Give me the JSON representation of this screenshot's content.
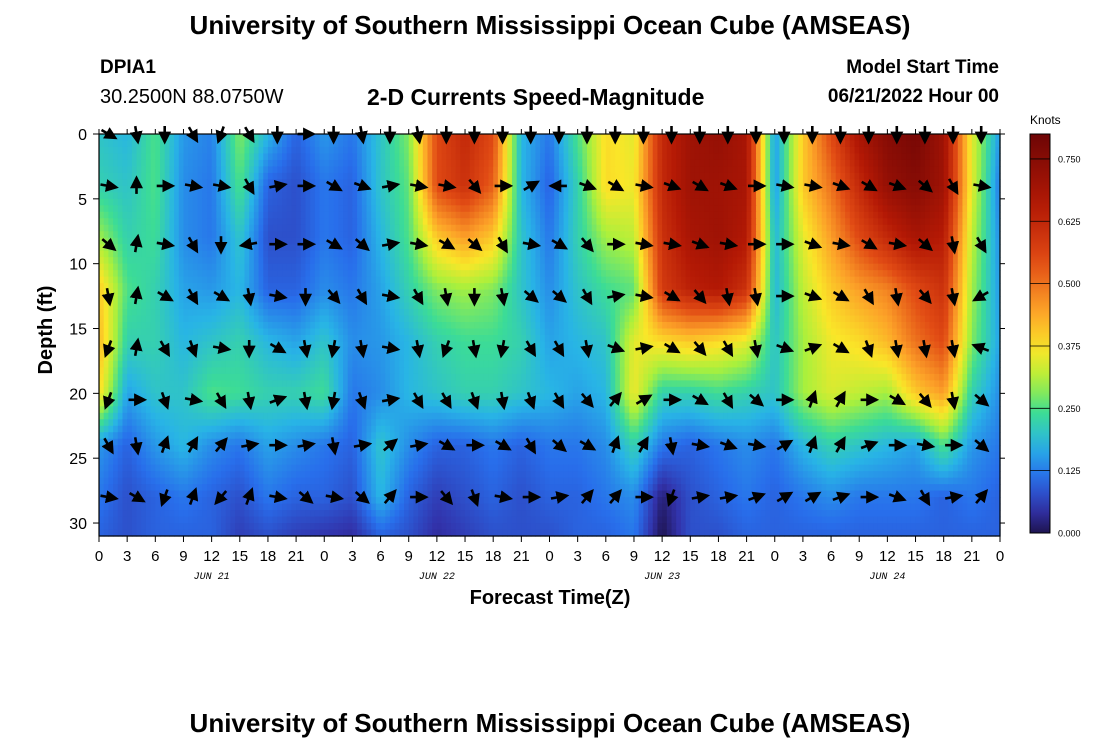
{
  "header": {
    "title": "University of Southern Mississippi Ocean Cube (AMSEAS)",
    "station_id": "DPIA1",
    "coords": "30.2500N  88.0750W",
    "chart_title": "2-D Currents Speed-Magnitude",
    "start_label": "Model Start Time",
    "start_value": "06/21/2022 Hour 00"
  },
  "footer": {
    "title": "University of Southern Mississippi Ocean Cube (AMSEAS)"
  },
  "chart_data": {
    "type": "heatmap",
    "title": "2-D Currents Speed-Magnitude",
    "xlabel": "Forecast Time(Z)",
    "ylabel": "Depth (ft)",
    "xlim": [
      0,
      96
    ],
    "ylim": [
      0,
      31
    ],
    "x_tick_hours": [
      0,
      3,
      6,
      9,
      12,
      15,
      18,
      21,
      24,
      27,
      30,
      33,
      36,
      39,
      42,
      45,
      48,
      51,
      54,
      57,
      60,
      63,
      66,
      69,
      72,
      75,
      78,
      81,
      84,
      87,
      90,
      93,
      96
    ],
    "x_tick_labels": [
      "0",
      "3",
      "6",
      "9",
      "12",
      "15",
      "18",
      "21",
      "0",
      "3",
      "6",
      "9",
      "12",
      "15",
      "18",
      "21",
      "0",
      "3",
      "6",
      "9",
      "12",
      "15",
      "18",
      "21",
      "0",
      "3",
      "6",
      "9",
      "12",
      "15",
      "18",
      "21",
      "0"
    ],
    "day_labels": [
      {
        "hour": 12,
        "text": "JUN 21"
      },
      {
        "hour": 36,
        "text": "JUN 22"
      },
      {
        "hour": 60,
        "text": "JUN 23"
      },
      {
        "hour": 84,
        "text": "JUN 24"
      }
    ],
    "y_ticks": [
      0,
      5,
      10,
      15,
      20,
      25,
      30
    ],
    "colorbar": {
      "title": "Knots",
      "range": [
        0,
        0.8
      ],
      "ticks": [
        0.0,
        0.125,
        0.25,
        0.375,
        0.5,
        0.625,
        0.75
      ],
      "tick_labels": [
        "0.000",
        "0.125",
        "0.250",
        "0.375",
        "0.500",
        "0.625",
        "0.750"
      ]
    },
    "speed_knots": {
      "hours": [
        0,
        3,
        6,
        9,
        12,
        15,
        18,
        21,
        24,
        27,
        30,
        33,
        36,
        39,
        42,
        45,
        48,
        51,
        54,
        57,
        60,
        63,
        66,
        69,
        72,
        75,
        78,
        81,
        84,
        87,
        90,
        93,
        96
      ],
      "depths_ft": [
        0,
        4,
        8,
        12,
        16,
        20,
        24,
        28,
        31
      ],
      "rows": [
        [
          0.2,
          0.18,
          0.25,
          0.15,
          0.13,
          0.28,
          0.18,
          0.1,
          0.15,
          0.12,
          0.2,
          0.28,
          0.55,
          0.62,
          0.55,
          0.18,
          0.12,
          0.25,
          0.38,
          0.35,
          0.62,
          0.7,
          0.72,
          0.68,
          0.15,
          0.4,
          0.55,
          0.68,
          0.75,
          0.78,
          0.7,
          0.35,
          0.15
        ],
        [
          0.22,
          0.2,
          0.25,
          0.14,
          0.12,
          0.25,
          0.1,
          0.08,
          0.12,
          0.1,
          0.2,
          0.26,
          0.55,
          0.6,
          0.52,
          0.18,
          0.1,
          0.22,
          0.38,
          0.36,
          0.62,
          0.7,
          0.7,
          0.68,
          0.15,
          0.4,
          0.5,
          0.62,
          0.72,
          0.75,
          0.7,
          0.35,
          0.12
        ],
        [
          0.3,
          0.22,
          0.24,
          0.14,
          0.12,
          0.2,
          0.08,
          0.08,
          0.12,
          0.1,
          0.18,
          0.25,
          0.4,
          0.45,
          0.4,
          0.2,
          0.12,
          0.22,
          0.3,
          0.32,
          0.6,
          0.68,
          0.7,
          0.66,
          0.18,
          0.35,
          0.45,
          0.55,
          0.62,
          0.68,
          0.65,
          0.32,
          0.14
        ],
        [
          0.4,
          0.25,
          0.22,
          0.16,
          0.15,
          0.18,
          0.1,
          0.1,
          0.14,
          0.12,
          0.16,
          0.22,
          0.28,
          0.3,
          0.28,
          0.2,
          0.14,
          0.2,
          0.24,
          0.26,
          0.58,
          0.64,
          0.66,
          0.6,
          0.18,
          0.32,
          0.4,
          0.45,
          0.48,
          0.55,
          0.6,
          0.3,
          0.15
        ],
        [
          0.42,
          0.22,
          0.22,
          0.18,
          0.2,
          0.22,
          0.18,
          0.16,
          0.2,
          0.14,
          0.15,
          0.18,
          0.22,
          0.24,
          0.24,
          0.22,
          0.16,
          0.18,
          0.2,
          0.35,
          0.38,
          0.4,
          0.38,
          0.35,
          0.2,
          0.3,
          0.36,
          0.38,
          0.42,
          0.5,
          0.55,
          0.28,
          0.16
        ],
        [
          0.38,
          0.16,
          0.2,
          0.2,
          0.25,
          0.24,
          0.22,
          0.22,
          0.24,
          0.12,
          0.14,
          0.18,
          0.2,
          0.22,
          0.22,
          0.2,
          0.18,
          0.16,
          0.18,
          0.36,
          0.22,
          0.22,
          0.24,
          0.22,
          0.2,
          0.3,
          0.34,
          0.32,
          0.3,
          0.4,
          0.45,
          0.22,
          0.14
        ],
        [
          0.15,
          0.1,
          0.15,
          0.18,
          0.14,
          0.12,
          0.16,
          0.14,
          0.12,
          0.1,
          0.2,
          0.14,
          0.1,
          0.1,
          0.12,
          0.1,
          0.12,
          0.12,
          0.14,
          0.22,
          0.12,
          0.1,
          0.12,
          0.14,
          0.12,
          0.18,
          0.22,
          0.2,
          0.18,
          0.16,
          0.25,
          0.15,
          0.12
        ],
        [
          0.12,
          0.08,
          0.1,
          0.12,
          0.1,
          0.08,
          0.12,
          0.1,
          0.1,
          0.08,
          0.18,
          0.1,
          0.06,
          0.08,
          0.1,
          0.08,
          0.1,
          0.1,
          0.12,
          0.14,
          0.02,
          0.08,
          0.1,
          0.12,
          0.1,
          0.12,
          0.14,
          0.12,
          0.12,
          0.12,
          0.1,
          0.12,
          0.1
        ],
        [
          0.1,
          0.08,
          0.1,
          0.1,
          0.1,
          0.06,
          0.08,
          0.06,
          0.05,
          0.04,
          0.1,
          0.08,
          0.04,
          0.06,
          0.08,
          0.08,
          0.08,
          0.1,
          0.1,
          0.12,
          0.0,
          0.08,
          0.08,
          0.1,
          0.1,
          0.1,
          0.1,
          0.1,
          0.1,
          0.1,
          0.1,
          0.1,
          0.1
        ]
      ]
    },
    "vectors": {
      "hours": [
        1,
        4,
        7,
        10,
        13,
        16,
        19,
        22,
        25,
        28,
        31,
        34,
        37,
        40,
        43,
        46,
        49,
        52,
        55,
        58,
        61,
        64,
        67,
        70,
        73,
        76,
        79,
        82,
        85,
        88,
        91,
        94
      ],
      "depths_ft": [
        0,
        4,
        8.5,
        12.5,
        16.5,
        20.5,
        24,
        28
      ],
      "directions_deg": [
        [
          120,
          170,
          180,
          150,
          200,
          150,
          180,
          90,
          180,
          170,
          180,
          170,
          180,
          180,
          180,
          180,
          180,
          180,
          180,
          180,
          180,
          180,
          180,
          180,
          180,
          180,
          180,
          180,
          180,
          180,
          180,
          180
        ],
        [
          100,
          0,
          90,
          100,
          100,
          150,
          80,
          90,
          120,
          110,
          80,
          100,
          100,
          140,
          90,
          60,
          270,
          110,
          120,
          100,
          110,
          120,
          110,
          90,
          100,
          100,
          110,
          120,
          110,
          130,
          150,
          100
        ],
        [
          130,
          10,
          100,
          150,
          180,
          260,
          90,
          90,
          120,
          130,
          80,
          100,
          120,
          130,
          150,
          100,
          120,
          140,
          90,
          100,
          100,
          110,
          100,
          90,
          90,
          110,
          100,
          120,
          100,
          130,
          170,
          150
        ],
        [
          170,
          10,
          120,
          150,
          120,
          170,
          100,
          180,
          140,
          150,
          100,
          150,
          170,
          180,
          170,
          130,
          130,
          150,
          80,
          100,
          120,
          140,
          170,
          170,
          90,
          110,
          120,
          150,
          170,
          140,
          170,
          240
        ],
        [
          200,
          10,
          150,
          160,
          100,
          180,
          120,
          170,
          190,
          170,
          100,
          170,
          200,
          170,
          190,
          150,
          150,
          170,
          110,
          80,
          120,
          140,
          150,
          170,
          110,
          70,
          120,
          160,
          170,
          170,
          170,
          290
        ],
        [
          200,
          90,
          160,
          100,
          150,
          170,
          70,
          170,
          190,
          160,
          80,
          150,
          150,
          160,
          170,
          160,
          150,
          140,
          40,
          60,
          90,
          120,
          150,
          130,
          90,
          20,
          30,
          90,
          120,
          140,
          170,
          130
        ],
        [
          150,
          170,
          20,
          30,
          40,
          80,
          90,
          80,
          170,
          80,
          50,
          80,
          120,
          90,
          120,
          150,
          130,
          120,
          20,
          30,
          170,
          100,
          110,
          100,
          60,
          20,
          30,
          70,
          90,
          100,
          90,
          130
        ],
        [
          100,
          120,
          200,
          20,
          220,
          20,
          100,
          130,
          100,
          130,
          40,
          90,
          140,
          160,
          100,
          90,
          80,
          40,
          40,
          90,
          200,
          80,
          80,
          70,
          60,
          60,
          70,
          90,
          110,
          150,
          80,
          40
        ]
      ]
    }
  }
}
